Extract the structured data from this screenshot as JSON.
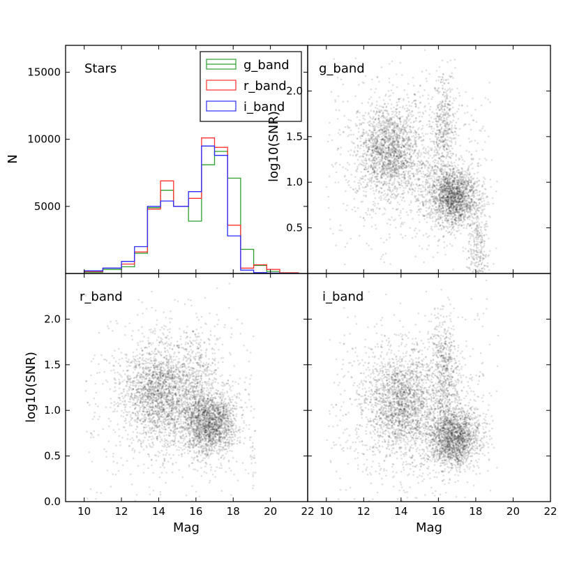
{
  "chart_data": [
    {
      "type": "histogram",
      "title": "",
      "annotation": "Stars",
      "xlabel": "",
      "ylabel": "N",
      "xlim": [
        9,
        22
      ],
      "ylim": [
        0,
        17000
      ],
      "yticks": [
        5000,
        10000,
        15000
      ],
      "xticks": [],
      "legend": {
        "placement": "top-right",
        "entries": [
          "g_band",
          "r_band",
          "i_band"
        ]
      },
      "bin_edges": [
        10,
        11,
        12,
        12.7,
        13.4,
        14.1,
        14.8,
        15.6,
        16.3,
        17,
        17.7,
        18.4,
        19.1,
        19.8,
        20.5,
        21.5
      ],
      "series": [
        {
          "name": "g_band",
          "color": "#2ca02c",
          "values": [
            100,
            300,
            500,
            1500,
            4900,
            6200,
            5000,
            3900,
            8100,
            9100,
            7100,
            1800,
            600,
            150,
            50
          ]
        },
        {
          "name": "r_band",
          "color": "#ff3030",
          "values": [
            150,
            400,
            700,
            1600,
            4800,
            6900,
            5000,
            5600,
            10100,
            9400,
            3600,
            400,
            650,
            300,
            50
          ]
        },
        {
          "name": "i_band",
          "color": "#2a2aff",
          "values": [
            200,
            400,
            900,
            2000,
            5000,
            5400,
            5000,
            6100,
            9500,
            8800,
            2800,
            250,
            60,
            30,
            10
          ]
        }
      ]
    },
    {
      "type": "scatter",
      "title": "",
      "annotation": "g_band",
      "xlabel": "",
      "ylabel": "log10(SNR)",
      "xlim": [
        9,
        22
      ],
      "ylim": [
        0,
        2.5
      ],
      "yticks": [
        "0.5",
        "1.0",
        "1.5",
        "2.0"
      ],
      "color": "#000000",
      "clusters": [
        {
          "x": 13.4,
          "y": 1.35,
          "sx": 0.9,
          "sy": 0.25,
          "weight": 0.32
        },
        {
          "x": 16.8,
          "y": 0.85,
          "sx": 0.7,
          "sy": 0.16,
          "weight": 0.36
        },
        {
          "x": 16.3,
          "y": 1.6,
          "sx": 0.3,
          "sy": 0.3,
          "weight": 0.08
        },
        {
          "x": 18.1,
          "y": 0.25,
          "sx": 0.25,
          "sy": 0.25,
          "weight": 0.06
        },
        {
          "x": 14.5,
          "y": 1.2,
          "sx": 2.2,
          "sy": 0.5,
          "weight": 0.18
        }
      ]
    },
    {
      "type": "scatter",
      "title": "",
      "annotation": "r_band",
      "xlabel": "Mag",
      "ylabel": "log10(SNR)",
      "xlim": [
        9,
        22
      ],
      "ylim": [
        0,
        2.5
      ],
      "xticks": [
        "10",
        "12",
        "14",
        "16",
        "18",
        "20",
        "22"
      ],
      "yticks": [
        "0.0",
        "0.5",
        "1.0",
        "1.5",
        "2.0"
      ],
      "color": "#000000",
      "clusters": [
        {
          "x": 14.0,
          "y": 1.2,
          "sx": 0.9,
          "sy": 0.25,
          "weight": 0.32
        },
        {
          "x": 16.7,
          "y": 0.85,
          "sx": 0.75,
          "sy": 0.17,
          "weight": 0.36
        },
        {
          "x": 19.6,
          "y": 0.4,
          "sx": 0.3,
          "sy": 0.18,
          "weight": 0.05
        },
        {
          "x": 16.0,
          "y": 1.3,
          "sx": 0.6,
          "sy": 0.3,
          "weight": 0.09
        },
        {
          "x": 14.5,
          "y": 1.1,
          "sx": 2.3,
          "sy": 0.5,
          "weight": 0.18
        }
      ]
    },
    {
      "type": "scatter",
      "title": "",
      "annotation": "i_band",
      "xlabel": "Mag",
      "ylabel": "",
      "xlim": [
        9,
        22
      ],
      "ylim": [
        0,
        2.5
      ],
      "xticks": [
        "10",
        "12",
        "14",
        "16",
        "18",
        "20",
        "22"
      ],
      "color": "#000000",
      "clusters": [
        {
          "x": 14.0,
          "y": 1.1,
          "sx": 0.9,
          "sy": 0.25,
          "weight": 0.3
        },
        {
          "x": 16.8,
          "y": 0.7,
          "sx": 0.7,
          "sy": 0.16,
          "weight": 0.36
        },
        {
          "x": 16.3,
          "y": 1.45,
          "sx": 0.35,
          "sy": 0.3,
          "weight": 0.1
        },
        {
          "x": 14.5,
          "y": 1.0,
          "sx": 2.3,
          "sy": 0.5,
          "weight": 0.24
        }
      ]
    }
  ]
}
